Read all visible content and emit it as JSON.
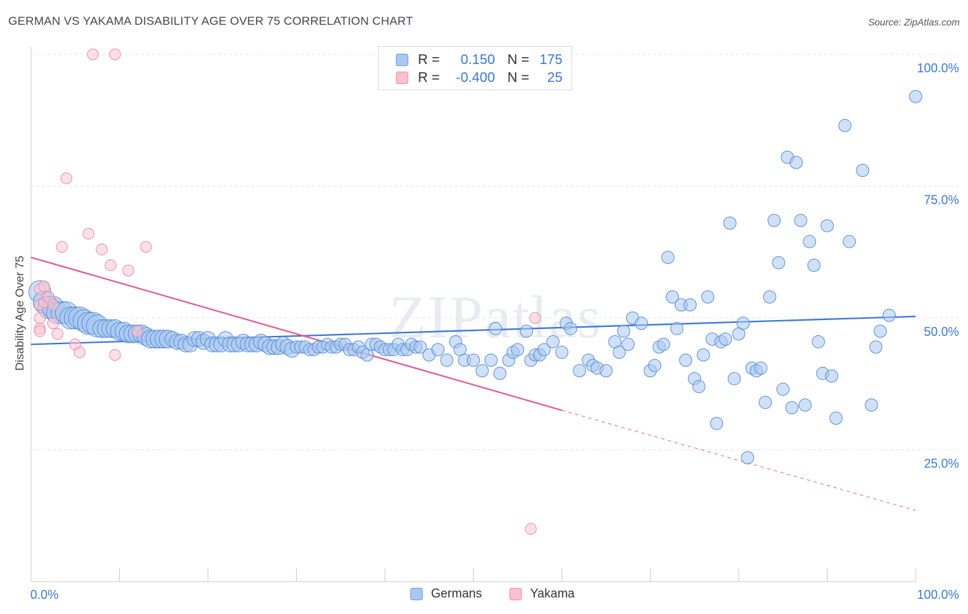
{
  "title": "GERMAN VS YAKAMA DISABILITY AGE OVER 75 CORRELATION CHART",
  "source": "Source: ZipAtlas.com",
  "watermark": "ZIPatlas",
  "legend": {
    "rows": [
      {
        "r_label": "R =",
        "r_value": "0.150",
        "n_label": "N =",
        "n_value": "175",
        "color": "#a9c8f0",
        "border": "#6fa0e0"
      },
      {
        "r_label": "R =",
        "r_value": "-0.400",
        "n_label": "N =",
        "n_value": "25",
        "color": "#f9c0d0",
        "border": "#ee90ac"
      }
    ]
  },
  "bottom_legend": [
    {
      "label": "Germans",
      "color": "#a9c8f0",
      "border": "#6fa0e0"
    },
    {
      "label": "Yakama",
      "color": "#f9c0d0",
      "border": "#ee90ac"
    }
  ],
  "chart_data": {
    "type": "scatter",
    "ylabel": "Disability Age Over 75",
    "xlabel": "",
    "x_tick_labels": [
      "0.0%",
      "100.0%"
    ],
    "y_tick_labels": [
      "25.0%",
      "50.0%",
      "75.0%",
      "100.0%"
    ],
    "xlim": [
      0,
      100
    ],
    "ylim": [
      0,
      100
    ],
    "grid": "horizontal dashed",
    "colors": {
      "germans": "#3b78d8",
      "yakama": "#e06090",
      "tick_text": "#3b78d8"
    },
    "series": [
      {
        "name": "Germans",
        "trend": {
          "x0": 0,
          "y0": 45.0,
          "x1": 100,
          "y1": 50.3
        },
        "points": [
          [
            1,
            55
          ],
          [
            1.5,
            53
          ],
          [
            2,
            52
          ],
          [
            2.5,
            52
          ],
          [
            3,
            51
          ],
          [
            3.5,
            51
          ],
          [
            4,
            51
          ],
          [
            4.5,
            50
          ],
          [
            5,
            50
          ],
          [
            5.5,
            50
          ],
          [
            6,
            49.5
          ],
          [
            6.5,
            49
          ],
          [
            7,
            49
          ],
          [
            7.5,
            48.5
          ],
          [
            8,
            48
          ],
          [
            8.5,
            48
          ],
          [
            9,
            48
          ],
          [
            9.5,
            48
          ],
          [
            10,
            47.5
          ],
          [
            10.5,
            47.5
          ],
          [
            11,
            47
          ],
          [
            11.5,
            47
          ],
          [
            12,
            47
          ],
          [
            12.5,
            47
          ],
          [
            13,
            46.5
          ],
          [
            13.5,
            46
          ],
          [
            14,
            46
          ],
          [
            14.5,
            46
          ],
          [
            15,
            46
          ],
          [
            15.5,
            46
          ],
          [
            16,
            46
          ],
          [
            16.5,
            45.5
          ],
          [
            17,
            45.5
          ],
          [
            17.5,
            45
          ],
          [
            18,
            45
          ],
          [
            18.5,
            46
          ],
          [
            19,
            46
          ],
          [
            19.5,
            45.5
          ],
          [
            20,
            46
          ],
          [
            20.5,
            45
          ],
          [
            21,
            45
          ],
          [
            21.5,
            45
          ],
          [
            22,
            46
          ],
          [
            22.5,
            45
          ],
          [
            23,
            45
          ],
          [
            23.5,
            45
          ],
          [
            24,
            45.5
          ],
          [
            24.5,
            45
          ],
          [
            25,
            45
          ],
          [
            25.5,
            45
          ],
          [
            26,
            45.5
          ],
          [
            26.5,
            45
          ],
          [
            27,
            44.5
          ],
          [
            27.5,
            44.5
          ],
          [
            28,
            44.5
          ],
          [
            28.5,
            45
          ],
          [
            29,
            44.5
          ],
          [
            29.5,
            44
          ],
          [
            30,
            44.5
          ],
          [
            30.5,
            44.5
          ],
          [
            31,
            44.5
          ],
          [
            31.5,
            44
          ],
          [
            32,
            44
          ],
          [
            32.5,
            44.5
          ],
          [
            33,
            44.5
          ],
          [
            33.5,
            45
          ],
          [
            34,
            44.5
          ],
          [
            34.5,
            44.5
          ],
          [
            35,
            45
          ],
          [
            35.5,
            45
          ],
          [
            36,
            44
          ],
          [
            36.5,
            44
          ],
          [
            37,
            44.5
          ],
          [
            37.5,
            43.5
          ],
          [
            38,
            43
          ],
          [
            38.5,
            45
          ],
          [
            39,
            45
          ],
          [
            39.5,
            44.5
          ],
          [
            40,
            44
          ],
          [
            40.5,
            44
          ],
          [
            41,
            44
          ],
          [
            41.5,
            45
          ],
          [
            42,
            44
          ],
          [
            42.5,
            44
          ],
          [
            43,
            45
          ],
          [
            43.5,
            44.5
          ],
          [
            44,
            44.5
          ],
          [
            45,
            43
          ],
          [
            46,
            44
          ],
          [
            47,
            42
          ],
          [
            48,
            45.5
          ],
          [
            48.5,
            44
          ],
          [
            49,
            42
          ],
          [
            50,
            42
          ],
          [
            51,
            40
          ],
          [
            52,
            42
          ],
          [
            52.5,
            48
          ],
          [
            53,
            39.5
          ],
          [
            54,
            42
          ],
          [
            54.5,
            43.5
          ],
          [
            55,
            44
          ],
          [
            56,
            47.5
          ],
          [
            56.5,
            42
          ],
          [
            57,
            43
          ],
          [
            57.5,
            43
          ],
          [
            58,
            44
          ],
          [
            59,
            45.5
          ],
          [
            60,
            43.5
          ],
          [
            60.5,
            49
          ],
          [
            61,
            48
          ],
          [
            62,
            40
          ],
          [
            63,
            42
          ],
          [
            63.5,
            41
          ],
          [
            64,
            40.5
          ],
          [
            65,
            40
          ],
          [
            66,
            45.5
          ],
          [
            66.5,
            43.5
          ],
          [
            67,
            47.5
          ],
          [
            67.5,
            45
          ],
          [
            68,
            50
          ],
          [
            69,
            49
          ],
          [
            70,
            40
          ],
          [
            70.5,
            41
          ],
          [
            71,
            44.5
          ],
          [
            71.5,
            45
          ],
          [
            72,
            61.5
          ],
          [
            72.5,
            54
          ],
          [
            73,
            48
          ],
          [
            73.5,
            52.5
          ],
          [
            74,
            42
          ],
          [
            74.5,
            52.5
          ],
          [
            75,
            38.5
          ],
          [
            75.5,
            37
          ],
          [
            76,
            43
          ],
          [
            76.5,
            54
          ],
          [
            77,
            46
          ],
          [
            77.5,
            30
          ],
          [
            78,
            45.5
          ],
          [
            78.5,
            46
          ],
          [
            79,
            68
          ],
          [
            79.5,
            38.5
          ],
          [
            80,
            47
          ],
          [
            80.5,
            49
          ],
          [
            81,
            23.5
          ],
          [
            81.5,
            40.5
          ],
          [
            82,
            40
          ],
          [
            82.5,
            40.5
          ],
          [
            83,
            34
          ],
          [
            83.5,
            54
          ],
          [
            84,
            68.5
          ],
          [
            84.5,
            60.5
          ],
          [
            85,
            36.5
          ],
          [
            85.5,
            80.5
          ],
          [
            86,
            33
          ],
          [
            86.5,
            79.5
          ],
          [
            87,
            68.5
          ],
          [
            87.5,
            33.5
          ],
          [
            88,
            64.5
          ],
          [
            88.5,
            60
          ],
          [
            89,
            45.5
          ],
          [
            89.5,
            39.5
          ],
          [
            90,
            67.5
          ],
          [
            90.5,
            39
          ],
          [
            91,
            31
          ],
          [
            92,
            86.5
          ],
          [
            92.5,
            64.5
          ],
          [
            94,
            78
          ],
          [
            95,
            33.5
          ],
          [
            95.5,
            44.5
          ],
          [
            96,
            47.5
          ],
          [
            97,
            50.5
          ],
          [
            100,
            92
          ]
        ]
      },
      {
        "name": "Yakama",
        "trend": {
          "x0": 0,
          "y0": 61.5,
          "x1": 60,
          "y1": 32.5,
          "dash_to_x": 100,
          "dash_to_y": 13.5
        },
        "points": [
          [
            1,
            55.5
          ],
          [
            1,
            52.5
          ],
          [
            1,
            50
          ],
          [
            1,
            48
          ],
          [
            1,
            47.5
          ],
          [
            1.5,
            56
          ],
          [
            1.5,
            53
          ],
          [
            2,
            54
          ],
          [
            2.5,
            52.5
          ],
          [
            2.5,
            49
          ],
          [
            3,
            47
          ],
          [
            3.5,
            63.5
          ],
          [
            4,
            76.5
          ],
          [
            5,
            45
          ],
          [
            5.5,
            43.5
          ],
          [
            6.5,
            66
          ],
          [
            7,
            100
          ],
          [
            9.5,
            100
          ],
          [
            8,
            63
          ],
          [
            9,
            60
          ],
          [
            9.5,
            43
          ],
          [
            11,
            59
          ],
          [
            12,
            47.5
          ],
          [
            13,
            63.5
          ],
          [
            57,
            50
          ],
          [
            56.5,
            10
          ]
        ]
      }
    ]
  }
}
